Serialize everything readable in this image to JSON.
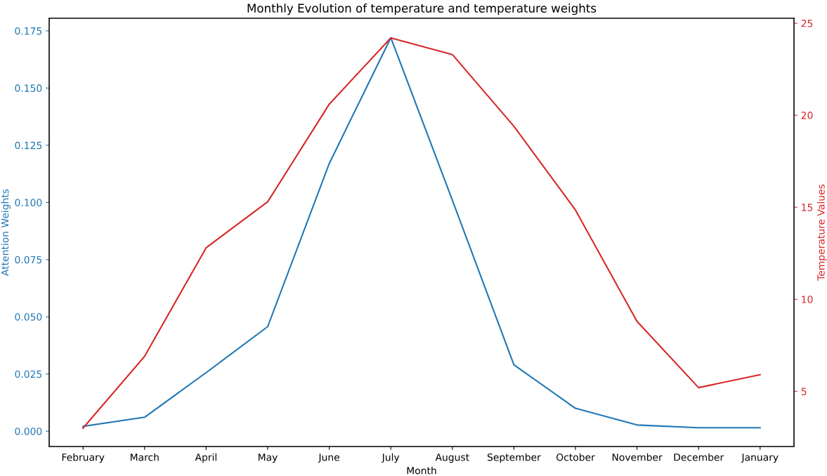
{
  "chart_data": {
    "type": "line",
    "title": "Monthly Evolution of temperature and temperature weights",
    "xlabel": "Month",
    "ylabel": "Attention Weights",
    "y2label": "Temperature Values",
    "categories": [
      "February",
      "March",
      "April",
      "May",
      "June",
      "July",
      "August",
      "September",
      "October",
      "November",
      "December",
      "January"
    ],
    "series": [
      {
        "color": "#1f77b4",
        "values": [
          0.0021,
          0.0061,
          0.0256,
          0.0457,
          0.117,
          0.172,
          0.101,
          0.029,
          0.01,
          0.0027,
          0.0015,
          0.0015
        ]
      },
      {
        "color": "#d62728",
        "axis": "y2",
        "values": [
          3.0,
          6.9,
          12.8,
          15.3,
          20.6,
          24.2,
          23.3,
          19.4,
          14.85,
          8.8,
          5.2,
          5.9
        ]
      }
    ],
    "ylim": [
      -0.0067,
      0.1805
    ],
    "yticks": [
      {
        "value": 0,
        "label": "0.000"
      },
      {
        "value": 0.025,
        "label": "0.025"
      },
      {
        "value": 0.05,
        "label": "0.050"
      },
      {
        "value": 0.075,
        "label": "0.075"
      },
      {
        "value": 0.1,
        "label": "0.100"
      },
      {
        "value": 0.125,
        "label": "0.125"
      },
      {
        "value": 0.15,
        "label": "0.150"
      },
      {
        "value": 0.175,
        "label": "0.175"
      }
    ],
    "y2lim": [
      2.0,
      25.27
    ],
    "y2ticks": [
      5,
      10,
      15,
      20,
      25
    ],
    "grid": false,
    "line_style": "solid"
  }
}
